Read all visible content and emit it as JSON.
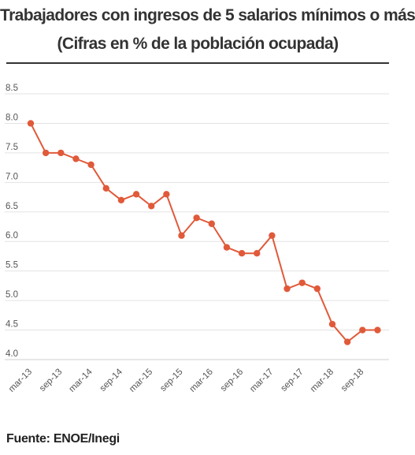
{
  "header": {
    "title_line1": "Trabajadores con ingresos de 5 salarios mínimos o más",
    "title_line2": "(Cifras en % de la población ocupada)"
  },
  "footer": {
    "source": "Fuente: ENOE/Inegi"
  },
  "chart_data": {
    "type": "line",
    "title": "Trabajadores con ingresos de 5 salarios mínimos o más",
    "subtitle": "(Cifras en % de la población ocupada)",
    "xlabel": "",
    "ylabel": "",
    "ylim": [
      4.0,
      8.5
    ],
    "yticks": [
      "4.0",
      "4.5",
      "5.0",
      "5.5",
      "6.0",
      "6.5",
      "7.0",
      "7.5",
      "8.0",
      "8.5"
    ],
    "grid": true,
    "legend": "none",
    "color": "#e05a3a",
    "x_tick_labels": [
      "mar-13",
      "sep-13",
      "mar-14",
      "sep-14",
      "mar-15",
      "sep-15",
      "mar-16",
      "sep-16",
      "mar-17",
      "sep-17",
      "mar-18",
      "sep-18"
    ],
    "series": [
      {
        "values": [
          8.0,
          7.5,
          7.5,
          7.4,
          7.3,
          6.9,
          6.7,
          6.8,
          6.6,
          6.8,
          6.1,
          6.4,
          6.3,
          5.9,
          5.8,
          5.8,
          6.1,
          5.2,
          5.3,
          5.2,
          4.6,
          4.3,
          4.5,
          4.5
        ]
      }
    ]
  }
}
